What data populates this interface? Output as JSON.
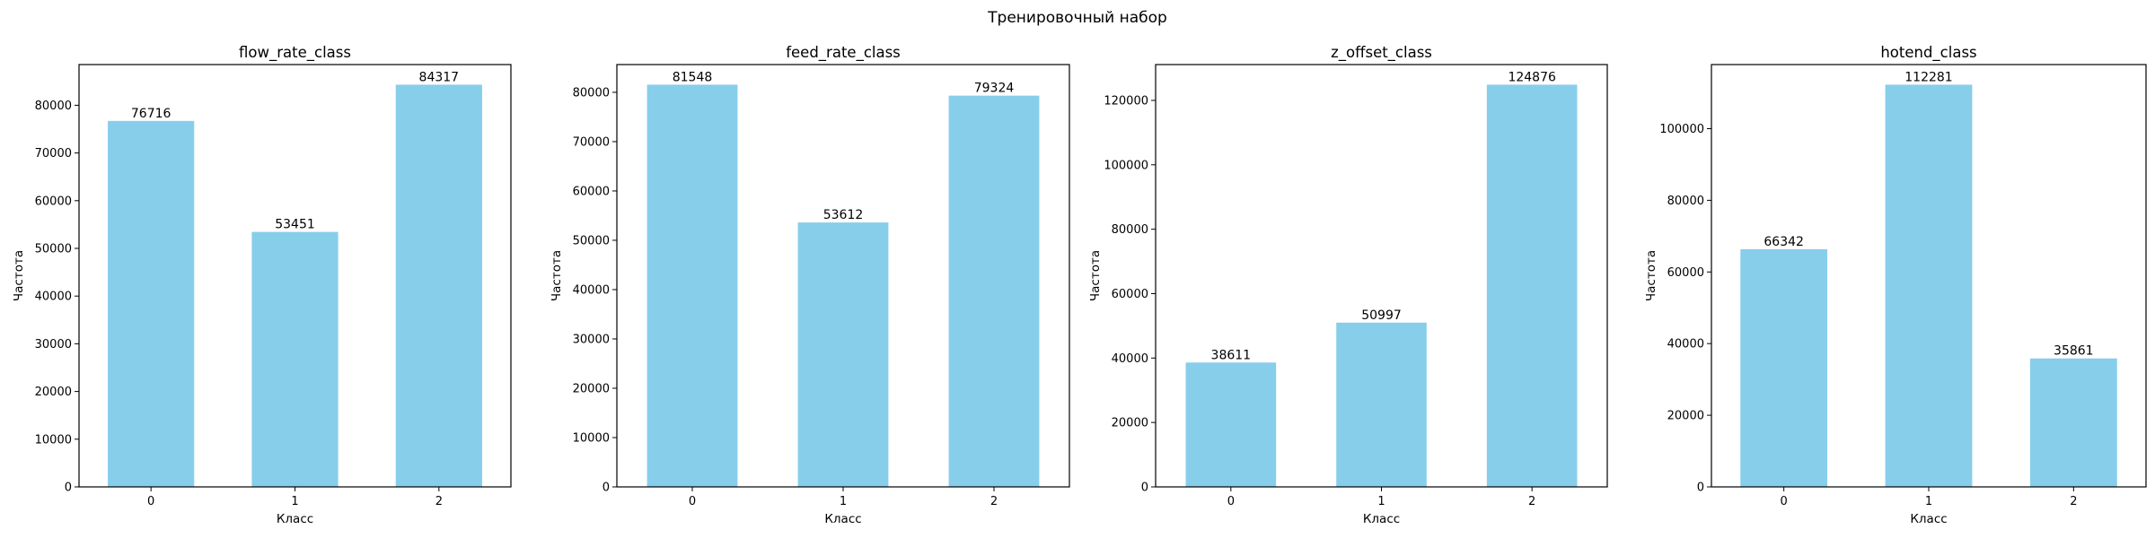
{
  "figure": {
    "suptitle": "Тренировочный набор"
  },
  "chart_data": [
    {
      "type": "bar",
      "title": "flow_rate_class",
      "xlabel": "Класс",
      "ylabel": "Частота",
      "categories": [
        "0",
        "1",
        "2"
      ],
      "values": [
        76716,
        53451,
        84317
      ],
      "ylim": [
        0,
        88533
      ],
      "yticks": [
        0,
        10000,
        20000,
        30000,
        40000,
        50000,
        60000,
        70000,
        80000
      ],
      "color": "#87CEEB",
      "grid": false
    },
    {
      "type": "bar",
      "title": "feed_rate_class",
      "xlabel": "Класс",
      "ylabel": "Частота",
      "categories": [
        "0",
        "1",
        "2"
      ],
      "values": [
        81548,
        53612,
        79324
      ],
      "ylim": [
        0,
        85625
      ],
      "yticks": [
        0,
        10000,
        20000,
        30000,
        40000,
        50000,
        60000,
        70000,
        80000
      ],
      "color": "#87CEEB",
      "grid": false
    },
    {
      "type": "bar",
      "title": "z_offset_class",
      "xlabel": "Класс",
      "ylabel": "Частота",
      "categories": [
        "0",
        "1",
        "2"
      ],
      "values": [
        38611,
        50997,
        124876
      ],
      "ylim": [
        0,
        131120
      ],
      "yticks": [
        0,
        20000,
        40000,
        60000,
        80000,
        100000,
        120000
      ],
      "color": "#87CEEB",
      "grid": false
    },
    {
      "type": "bar",
      "title": "hotend_class",
      "xlabel": "Класс",
      "ylabel": "Частота",
      "categories": [
        "0",
        "1",
        "2"
      ],
      "values": [
        66342,
        112281,
        35861
      ],
      "ylim": [
        0,
        117895
      ],
      "yticks": [
        0,
        20000,
        40000,
        60000,
        80000,
        100000
      ],
      "color": "#87CEEB",
      "grid": false
    }
  ]
}
